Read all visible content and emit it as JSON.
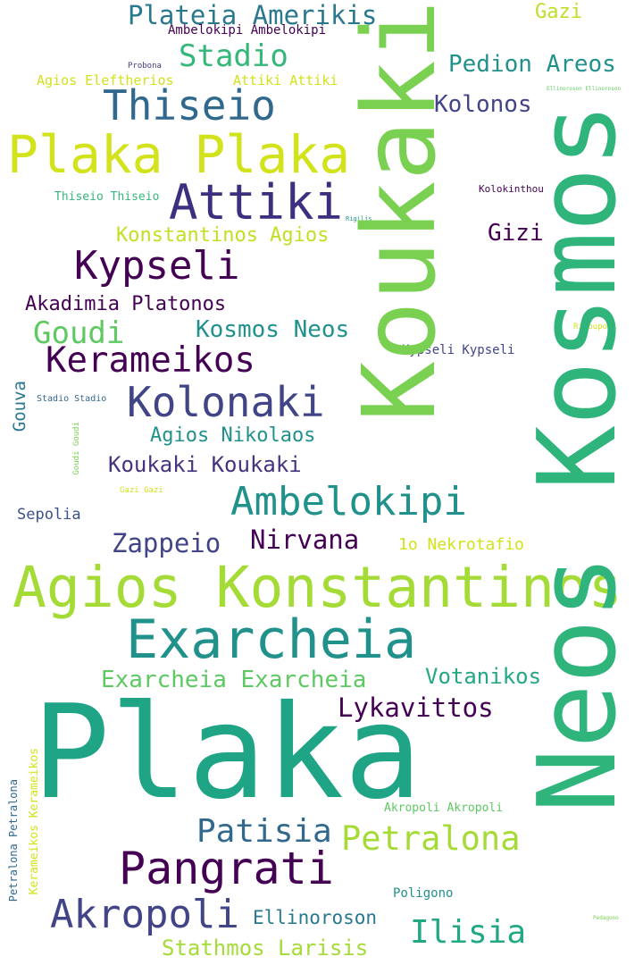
{
  "words": [
    {
      "text": "Plateia Amerikis",
      "color": "#2a788e",
      "rotate": false
    },
    {
      "text": "Ambelokipi Ambelokipi",
      "color": "#440154",
      "rotate": false
    },
    {
      "text": "Gazi",
      "color": "#bddf26",
      "rotate": false
    },
    {
      "text": "Stadio",
      "color": "#35b779",
      "rotate": false
    },
    {
      "text": "Pedion Areos",
      "color": "#21918c",
      "rotate": false
    },
    {
      "text": "Probona",
      "color": "#443983",
      "rotate": false
    },
    {
      "text": "Agios Eleftherios",
      "color": "#d2e21b",
      "rotate": false
    },
    {
      "text": "Attiki Attiki",
      "color": "#d2e21b",
      "rotate": false
    },
    {
      "text": "Ellinoroson Ellinoroson",
      "color": "#5ec962",
      "rotate": false
    },
    {
      "text": "Thiseio",
      "color": "#31688e",
      "rotate": false
    },
    {
      "text": "Kolonos",
      "color": "#414487",
      "rotate": false
    },
    {
      "text": "Plaka Plaka",
      "color": "#d2e21b",
      "rotate": false
    },
    {
      "text": "Thiseio Thiseio",
      "color": "#35b779",
      "rotate": false
    },
    {
      "text": "Kolokinthou",
      "color": "#440154",
      "rotate": false
    },
    {
      "text": "Attiki",
      "color": "#3b2f80",
      "rotate": false
    },
    {
      "text": "Rigilis",
      "color": "#21918c",
      "rotate": false
    },
    {
      "text": "Konstantinos Agios",
      "color": "#c2df23",
      "rotate": false
    },
    {
      "text": "Gizi",
      "color": "#440154",
      "rotate": false
    },
    {
      "text": "Kypseli",
      "color": "#440154",
      "rotate": false
    },
    {
      "text": "Akadimia Platonos",
      "color": "#440154",
      "rotate": false
    },
    {
      "text": "Goudi",
      "color": "#5ec962",
      "rotate": false
    },
    {
      "text": "Kosmos Neos",
      "color": "#21918c",
      "rotate": false
    },
    {
      "text": "Rizoupoli",
      "color": "#d2e21b",
      "rotate": false
    },
    {
      "text": "Kerameikos",
      "color": "#440154",
      "rotate": false
    },
    {
      "text": "Kypseli Kypseli",
      "color": "#414487",
      "rotate": false
    },
    {
      "text": "Kolonaki",
      "color": "#414487",
      "rotate": false
    },
    {
      "text": "Stadio Stadio",
      "color": "#31688e",
      "rotate": false
    },
    {
      "text": "Gouva",
      "color": "#2a788e",
      "rotate": true
    },
    {
      "text": "Agios Nikolaos",
      "color": "#21918c",
      "rotate": false
    },
    {
      "text": "Goudi Goudi",
      "color": "#7ad151",
      "rotate": true
    },
    {
      "text": "Koukaki Koukaki",
      "color": "#46337e",
      "rotate": false
    },
    {
      "text": "Gazi Gazi",
      "color": "#d2e21b",
      "rotate": false
    },
    {
      "text": "Ambelokipi",
      "color": "#21918c",
      "rotate": false
    },
    {
      "text": "Sepolia",
      "color": "#3b528b",
      "rotate": false
    },
    {
      "text": "Zappeio",
      "color": "#414487",
      "rotate": false
    },
    {
      "text": "Nirvana",
      "color": "#440154",
      "rotate": false
    },
    {
      "text": "1o Nekrotafio",
      "color": "#d2e21b",
      "rotate": false
    },
    {
      "text": "Agios Konstantinos",
      "color": "#a5db36",
      "rotate": false
    },
    {
      "text": "Exarcheia",
      "color": "#21918c",
      "rotate": false
    },
    {
      "text": "Exarcheia Exarcheia",
      "color": "#5ec962",
      "rotate": false
    },
    {
      "text": "Votanikos",
      "color": "#22a884",
      "rotate": false
    },
    {
      "text": "Lykavittos",
      "color": "#440154",
      "rotate": false
    },
    {
      "text": "Plaka",
      "color": "#20a486",
      "rotate": false
    },
    {
      "text": "Petralona Petralona",
      "color": "#31688e",
      "rotate": true
    },
    {
      "text": "Kerameikos Kerameikos",
      "color": "#d2e21b",
      "rotate": true
    },
    {
      "text": "Akropoli Akropoli",
      "color": "#5ec962",
      "rotate": false
    },
    {
      "text": "Patisia",
      "color": "#31688e",
      "rotate": false
    },
    {
      "text": "Petralona",
      "color": "#a5db36",
      "rotate": false
    },
    {
      "text": "Pangrati",
      "color": "#440154",
      "rotate": false
    },
    {
      "text": "Poligono",
      "color": "#21918c",
      "rotate": false
    },
    {
      "text": "Akropoli",
      "color": "#414487",
      "rotate": false
    },
    {
      "text": "Ellinoroson",
      "color": "#2a788e",
      "rotate": false
    },
    {
      "text": "Ilisia",
      "color": "#22a884",
      "rotate": false
    },
    {
      "text": "Pedagono",
      "color": "#7ad151",
      "rotate": false
    },
    {
      "text": "Stathmos Larisis",
      "color": "#a5db36",
      "rotate": false
    },
    {
      "text": "Koukaki",
      "color": "#7ad151",
      "rotate": true
    },
    {
      "text": "Neos Kosmos",
      "color": "#2fb47c",
      "rotate": true
    }
  ]
}
